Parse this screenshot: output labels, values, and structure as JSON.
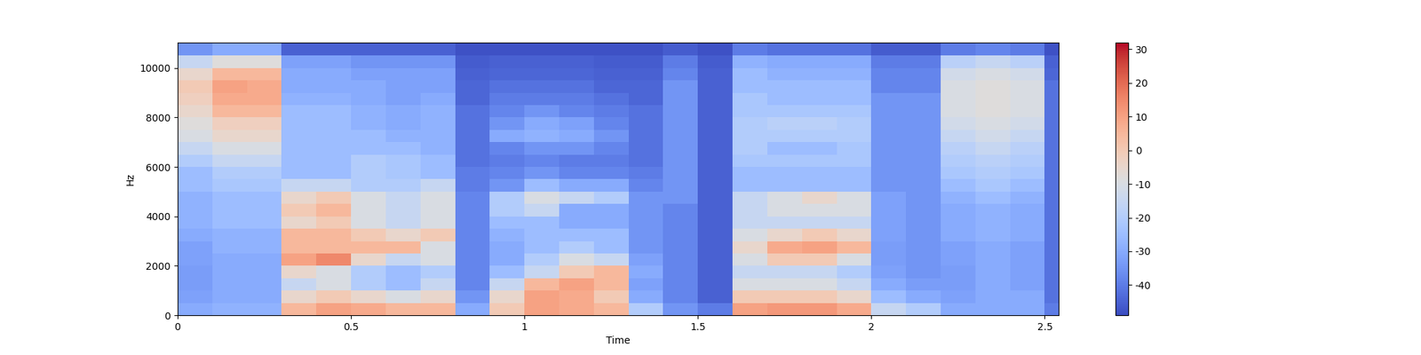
{
  "chart_data": {
    "type": "heatmap",
    "x_label": "Time",
    "y_label": "Hz",
    "x_edges": [
      0,
      0.1,
      0.2,
      0.3,
      0.4,
      0.5,
      0.6,
      0.7,
      0.8,
      0.9,
      1.0,
      1.1,
      1.2,
      1.3,
      1.4,
      1.5,
      1.6,
      1.7,
      1.8,
      1.9,
      2.0,
      2.1,
      2.2,
      2.3,
      2.4,
      2.5,
      2.54
    ],
    "y_edges": [
      0,
      500,
      1000,
      1500,
      2000,
      2500,
      3000,
      3500,
      4000,
      4500,
      5000,
      5500,
      6000,
      6500,
      7000,
      7500,
      8000,
      8500,
      9000,
      9500,
      10000,
      10500,
      11025
    ],
    "xlim": [
      0,
      2.54
    ],
    "xticks": [
      0,
      0.5,
      1,
      1.5,
      2,
      2.5
    ],
    "ylim": [
      0,
      11025
    ],
    "yticks": [
      0,
      2000,
      4000,
      6000,
      8000,
      10000
    ],
    "color": "coolwarm",
    "colorbar": {
      "range": [
        -49,
        32
      ],
      "ticks": [
        -40,
        -30,
        -20,
        -10,
        0,
        10,
        20,
        30
      ]
    },
    "cells": [
      [
        -30,
        -28,
        -28,
        5,
        10,
        8,
        5,
        5,
        -30,
        0,
        10,
        8,
        5,
        -20,
        -35,
        -40,
        10,
        12,
        12,
        8,
        -15,
        -20,
        -30,
        -30,
        -30,
        -40
      ],
      [
        -32,
        -30,
        -30,
        -5,
        0,
        -5,
        -10,
        -5,
        -35,
        -5,
        10,
        8,
        0,
        -30,
        -38,
        -45,
        0,
        0,
        0,
        -5,
        -25,
        -30,
        -32,
        -30,
        -30,
        -42
      ],
      [
        -33,
        -30,
        -30,
        -15,
        -10,
        -20,
        -25,
        -15,
        -38,
        -15,
        5,
        10,
        5,
        -32,
        -38,
        -45,
        -10,
        -10,
        -10,
        -15,
        -30,
        -33,
        -33,
        -30,
        -32,
        -42
      ],
      [
        -33,
        -30,
        -30,
        -5,
        -10,
        -20,
        -25,
        -20,
        -38,
        -25,
        -15,
        0,
        5,
        -30,
        -38,
        -45,
        -15,
        -15,
        -15,
        -20,
        -32,
        -35,
        -33,
        -30,
        -32,
        -42
      ],
      [
        -32,
        -30,
        -30,
        10,
        15,
        -5,
        -15,
        -10,
        -38,
        -30,
        -20,
        -10,
        -15,
        -32,
        -38,
        -45,
        -10,
        0,
        0,
        -10,
        -33,
        -35,
        -32,
        -30,
        -32,
        -42
      ],
      [
        -32,
        -28,
        -28,
        5,
        5,
        5,
        5,
        -10,
        -38,
        -30,
        -25,
        -20,
        -25,
        -35,
        -38,
        -45,
        -5,
        8,
        10,
        5,
        -33,
        -35,
        -32,
        -30,
        -32,
        -42
      ],
      [
        -30,
        -28,
        -28,
        5,
        5,
        0,
        -5,
        0,
        -38,
        -28,
        -25,
        -25,
        -25,
        -35,
        -38,
        -45,
        -10,
        -5,
        0,
        -5,
        -32,
        -35,
        -30,
        -28,
        -30,
        -42
      ],
      [
        -28,
        -25,
        -25,
        -5,
        0,
        -10,
        -15,
        -10,
        -38,
        -25,
        -25,
        -30,
        -30,
        -35,
        -38,
        -45,
        -15,
        -15,
        -15,
        -15,
        -32,
        -35,
        -30,
        -28,
        -30,
        -42
      ],
      [
        -28,
        -25,
        -25,
        0,
        5,
        -10,
        -15,
        -10,
        -38,
        -20,
        -15,
        -30,
        -30,
        -35,
        -38,
        -45,
        -15,
        -10,
        -10,
        -10,
        -32,
        -35,
        -30,
        -28,
        -30,
        -42
      ],
      [
        -28,
        -25,
        -25,
        -5,
        0,
        -10,
        -15,
        -10,
        -38,
        -20,
        -10,
        -15,
        -20,
        -35,
        -35,
        -45,
        -15,
        -10,
        -5,
        -10,
        -32,
        -35,
        -28,
        -25,
        -28,
        -42
      ],
      [
        -25,
        -22,
        -22,
        -15,
        -15,
        -20,
        -20,
        -15,
        -40,
        -35,
        -25,
        -30,
        -30,
        -38,
        -35,
        -45,
        -25,
        -25,
        -25,
        -25,
        -35,
        -35,
        -25,
        -22,
        -25,
        -42
      ],
      [
        -25,
        -20,
        -20,
        -25,
        -25,
        -20,
        -22,
        -25,
        -40,
        -38,
        -35,
        -38,
        -38,
        -40,
        -35,
        -45,
        -25,
        -25,
        -25,
        -25,
        -35,
        -35,
        -22,
        -20,
        -22,
        -42
      ],
      [
        -20,
        -15,
        -15,
        -25,
        -25,
        -20,
        -22,
        -25,
        -42,
        -40,
        -38,
        -40,
        -40,
        -42,
        -35,
        -45,
        -22,
        -22,
        -22,
        -22,
        -35,
        -35,
        -20,
        -18,
        -20,
        -42
      ],
      [
        -15,
        -10,
        -10,
        -25,
        -25,
        -25,
        -25,
        -28,
        -42,
        -38,
        -35,
        -35,
        -38,
        -42,
        -35,
        -45,
        -20,
        -25,
        -25,
        -22,
        -35,
        -35,
        -18,
        -15,
        -18,
        -42
      ],
      [
        -10,
        -5,
        -5,
        -25,
        -25,
        -25,
        -28,
        -28,
        -42,
        -30,
        -28,
        -30,
        -35,
        -42,
        -35,
        -45,
        -20,
        -20,
        -20,
        -20,
        -35,
        -35,
        -15,
        -12,
        -15,
        -42
      ],
      [
        -8,
        -2,
        -2,
        -25,
        -25,
        -28,
        -30,
        -28,
        -42,
        -35,
        -30,
        -32,
        -38,
        -42,
        -35,
        -45,
        -20,
        -18,
        -18,
        -20,
        -35,
        -35,
        -12,
        -10,
        -12,
        -42
      ],
      [
        -5,
        5,
        5,
        -25,
        -25,
        -28,
        -30,
        -28,
        -42,
        -38,
        -35,
        -38,
        -40,
        -42,
        -35,
        -45,
        -22,
        -22,
        -22,
        -22,
        -35,
        -35,
        -10,
        -8,
        -10,
        -42
      ],
      [
        -2,
        8,
        8,
        -28,
        -28,
        -30,
        -32,
        -30,
        -44,
        -40,
        -40,
        -40,
        -42,
        -44,
        -35,
        -45,
        -22,
        -25,
        -25,
        -25,
        -35,
        -35,
        -10,
        -8,
        -10,
        -42
      ],
      [
        0,
        10,
        8,
        -30,
        -30,
        -30,
        -32,
        -32,
        -44,
        -42,
        -42,
        -42,
        -44,
        -44,
        -35,
        -45,
        -25,
        -25,
        -25,
        -25,
        -38,
        -38,
        -10,
        -8,
        -10,
        -42
      ],
      [
        -5,
        5,
        5,
        -30,
        -30,
        -32,
        -32,
        -32,
        -45,
        -44,
        -44,
        -44,
        -45,
        -45,
        -38,
        -45,
        -25,
        -28,
        -28,
        -28,
        -38,
        -38,
        -12,
        -10,
        -12,
        -44
      ],
      [
        -15,
        -8,
        -8,
        -32,
        -32,
        -35,
        -35,
        -35,
        -46,
        -45,
        -45,
        -45,
        -46,
        -46,
        -40,
        -46,
        -28,
        -30,
        -30,
        -30,
        -40,
        -40,
        -18,
        -15,
        -18,
        -45
      ],
      [
        -35,
        -30,
        -30,
        -45,
        -45,
        -45,
        -45,
        -45,
        -48,
        -48,
        -48,
        -48,
        -48,
        -48,
        -46,
        -48,
        -40,
        -42,
        -42,
        -42,
        -46,
        -46,
        -40,
        -38,
        -40,
        -48
      ]
    ]
  }
}
